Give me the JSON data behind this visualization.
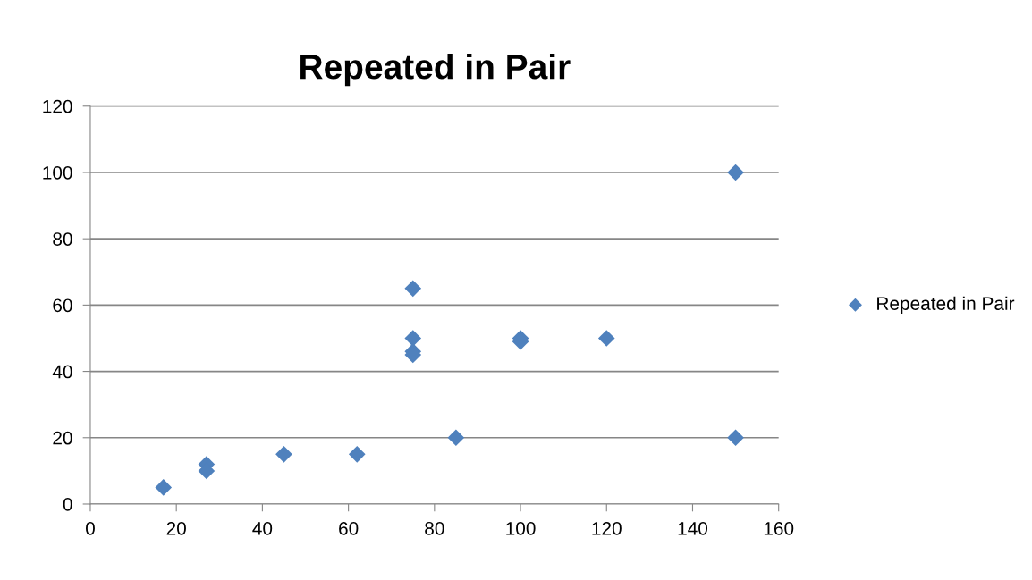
{
  "chart_data": {
    "type": "scatter",
    "title": "Repeated in Pair",
    "x": [
      17,
      27,
      27,
      45,
      62,
      75,
      75,
      75,
      75,
      85,
      100,
      100,
      120,
      150,
      150
    ],
    "series": [
      {
        "name": "Repeated in Pair",
        "color": "#4f81bd",
        "values": [
          5,
          12,
          10,
          15,
          15,
          65,
          50,
          46,
          45,
          20,
          50,
          49,
          50,
          100,
          20
        ]
      }
    ],
    "xlim": [
      0,
      160
    ],
    "xticks": [
      0,
      20,
      40,
      60,
      80,
      100,
      120,
      140,
      160
    ],
    "ylim": [
      0,
      120
    ],
    "yticks": [
      0,
      20,
      40,
      60,
      80,
      100,
      120
    ],
    "grid": "y",
    "legend": "right",
    "marker": "diamond"
  }
}
